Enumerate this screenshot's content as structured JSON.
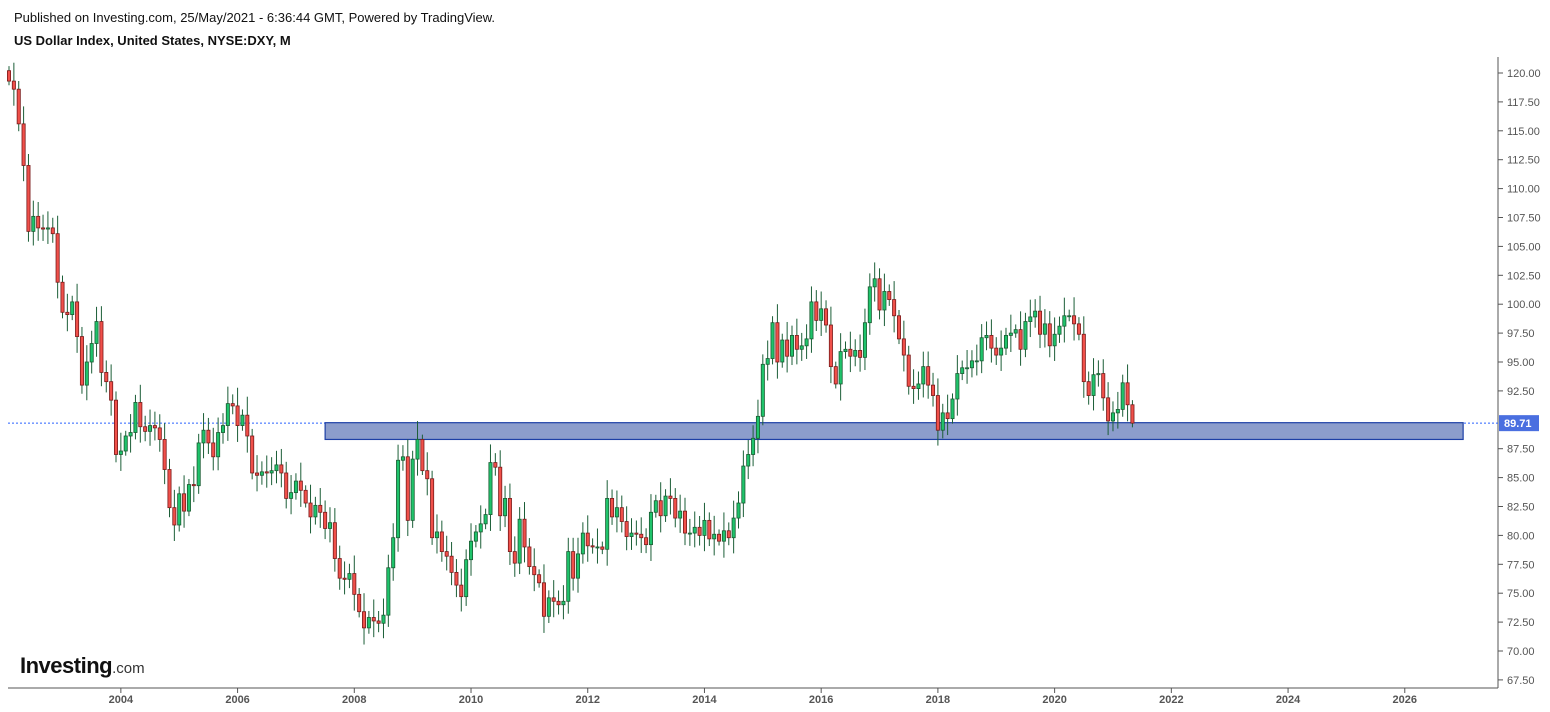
{
  "header": {
    "published": "Published on Investing.com, 25/May/2021 - 6:36:44 GMT, Powered by TradingView.",
    "title": "US Dollar Index, United States, NYSE:DXY, M"
  },
  "logo": {
    "text": "Investing",
    "suffix": ".com"
  },
  "colors": {
    "up_fill": "#1fc36b",
    "up_border": "#1a5c32",
    "down_fill": "#f0504a",
    "down_border": "#7a1a1a",
    "wick": "#1b5e37",
    "zone_fill": "#8c9dcc",
    "zone_border": "#1d3fa6",
    "price_line": "#2962ff",
    "price_label_bg": "#4a6fe0"
  },
  "chart_data": {
    "type": "candlestick",
    "interval": "1M",
    "start": "2002-02",
    "first_open": 120.2,
    "closes": [
      119.3,
      118.6,
      115.6,
      112.0,
      106.3,
      107.6,
      106.6,
      106.5,
      106.6,
      106.1,
      101.9,
      99.3,
      99.1,
      100.2,
      97.2,
      93.0,
      95.0,
      96.6,
      98.5,
      94.1,
      93.3,
      91.7,
      87.0,
      87.3,
      88.6,
      88.9,
      91.5,
      89.4,
      89.0,
      89.5,
      89.3,
      88.3,
      85.7,
      82.4,
      80.9,
      83.6,
      82.1,
      84.4,
      84.3,
      88.0,
      89.1,
      88.0,
      86.8,
      88.9,
      89.5,
      91.4,
      91.2,
      89.5,
      90.4,
      88.6,
      85.4,
      85.2,
      85.5,
      85.4,
      85.6,
      86.1,
      85.4,
      83.2,
      83.7,
      84.7,
      83.9,
      82.8,
      81.6,
      82.6,
      82.0,
      80.6,
      81.1,
      78.0,
      76.3,
      76.2,
      76.7,
      74.9,
      73.4,
      72.0,
      72.9,
      72.6,
      72.4,
      73.1,
      77.2,
      79.8,
      86.5,
      86.8,
      81.3,
      86.6,
      88.3,
      85.6,
      84.9,
      79.8,
      80.3,
      78.6,
      78.2,
      76.8,
      75.7,
      74.7,
      77.9,
      79.5,
      80.3,
      81.0,
      81.8,
      86.3,
      85.9,
      81.7,
      83.2,
      78.6,
      77.6,
      81.4,
      79.0,
      77.3,
      76.6,
      75.9,
      73.0,
      74.6,
      74.3,
      74.0,
      74.3,
      78.6,
      76.3,
      78.4,
      80.2,
      79.1,
      79.0,
      79.0,
      78.8,
      83.2,
      81.6,
      82.4,
      81.2,
      79.9,
      80.2,
      80.1,
      79.8,
      79.2,
      82.0,
      83.0,
      81.7,
      83.4,
      83.2,
      81.5,
      82.1,
      80.2,
      80.2,
      80.7,
      80.0,
      81.3,
      79.7,
      80.1,
      79.5,
      80.4,
      79.8,
      81.5,
      82.8,
      86.0,
      87.0,
      88.4,
      90.3,
      94.8,
      95.3,
      98.4,
      95.0,
      96.9,
      95.5,
      97.3,
      96.1,
      96.4,
      97.0,
      100.2,
      98.6,
      99.6,
      98.2,
      94.6,
      93.1,
      95.9,
      96.1,
      95.5,
      96.0,
      95.4,
      98.4,
      101.5,
      102.2,
      99.5,
      101.1,
      100.4,
      99.0,
      97.0,
      95.6,
      92.9,
      92.7,
      93.1,
      94.6,
      93.0,
      92.1,
      89.1,
      90.6,
      90.1,
      91.8,
      94.0,
      94.5,
      94.5,
      95.1,
      95.1,
      97.1,
      97.3,
      96.2,
      95.6,
      96.2,
      97.3,
      97.5,
      97.8,
      96.1,
      98.5,
      98.9,
      99.4,
      97.4,
      98.3,
      96.4,
      97.4,
      98.1,
      99.0,
      99.0,
      98.3,
      97.4,
      93.3,
      92.1,
      93.9,
      94.0,
      91.9,
      89.9,
      90.6,
      90.9,
      93.2,
      91.3,
      89.71
    ],
    "last_price": "89.71",
    "zone": {
      "from": "2007-07",
      "to": "2027-01",
      "top": 89.75,
      "bottom": 88.3
    },
    "ylim": [
      67.5,
      120
    ],
    "y_ticks": [
      "120.00",
      "117.50",
      "115.00",
      "112.50",
      "110.00",
      "107.50",
      "105.00",
      "102.50",
      "100.00",
      "97.50",
      "95.00",
      "92.50",
      "87.50",
      "85.00",
      "82.50",
      "80.00",
      "77.50",
      "75.00",
      "72.50",
      "70.00",
      "67.50"
    ],
    "x_ticks": [
      "2004",
      "2006",
      "2008",
      "2010",
      "2012",
      "2014",
      "2016",
      "2018",
      "2020",
      "2022",
      "2024",
      "2026"
    ],
    "grid": false
  }
}
